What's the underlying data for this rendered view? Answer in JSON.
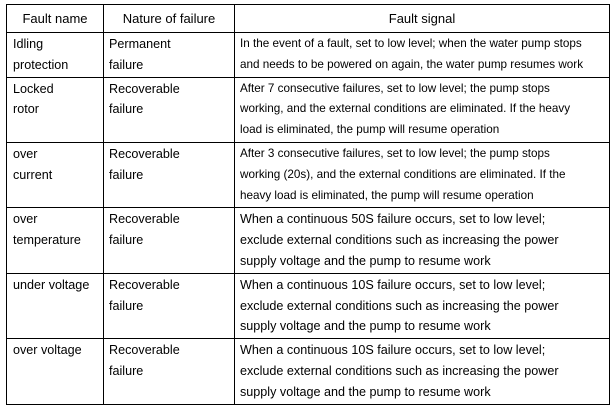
{
  "headers": {
    "fault_name": "Fault name",
    "nature": "Nature of failure",
    "signal": "Fault signal"
  },
  "rows": [
    {
      "name": [
        "Idling",
        "protection"
      ],
      "nature": [
        "Permanent",
        "failure"
      ],
      "signal": [
        "In the event of a fault, set to low level; when the water pump stops",
        "and needs to be powered on again, the water pump resumes work"
      ]
    },
    {
      "name": [
        "Locked",
        "rotor"
      ],
      "nature": [
        "Recoverable",
        "failure"
      ],
      "signal": [
        "After 7 consecutive failures, set to low level; the pump stops",
        "working, and the external conditions are eliminated. If the heavy",
        "load is eliminated, the pump will resume operation"
      ]
    },
    {
      "name": [
        "over",
        "current"
      ],
      "nature": [
        "Recoverable",
        "failure"
      ],
      "signal": [
        "After 3 consecutive failures, set to low level; the pump stops",
        "working (20s), and the external conditions are eliminated. If the",
        "heavy load is eliminated, the pump will resume operation"
      ]
    },
    {
      "name": [
        "over",
        "temperature"
      ],
      "nature": [
        "Recoverable",
        "failure"
      ],
      "signal": [
        "When a continuous 50S failure occurs, set to low level;",
        "exclude external conditions such as increasing the power",
        "supply voltage and the pump to resume work"
      ]
    },
    {
      "name": [
        "under voltage"
      ],
      "nature": [
        "Recoverable",
        "failure"
      ],
      "signal": [
        "When a continuous 10S failure occurs, set to low level;",
        "exclude external conditions such as increasing the power",
        "supply voltage and the pump to resume work"
      ]
    },
    {
      "name": [
        "over voltage"
      ],
      "nature": [
        "Recoverable",
        "failure"
      ],
      "signal": [
        "When a continuous 10S failure occurs, set to low level;",
        "exclude external conditions such as increasing the power",
        "supply voltage and the pump to resume work"
      ]
    }
  ]
}
